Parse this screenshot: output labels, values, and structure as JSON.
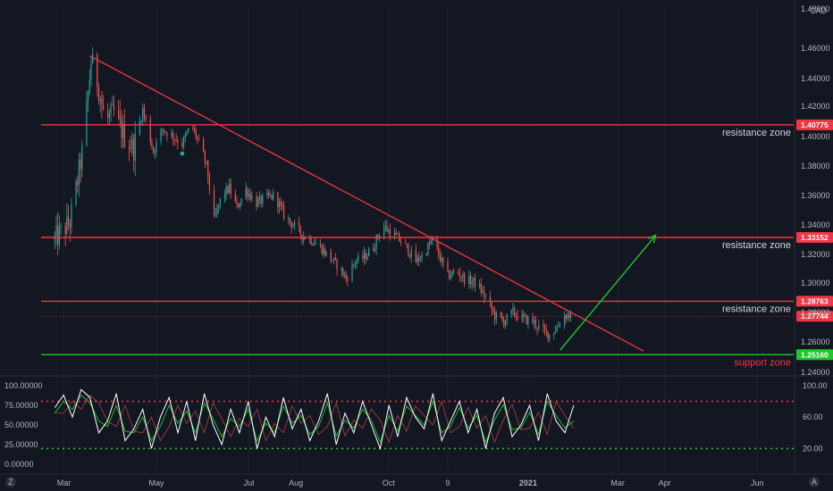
{
  "chart_data": [
    {
      "type": "candlestick",
      "currency": "CAD",
      "ylim": [
        1.24,
        1.48
      ],
      "y_ticks": [
        "1.48000",
        "1.46000",
        "1.44000",
        "1.42000",
        "1.40000",
        "1.38000",
        "1.36000",
        "1.34000",
        "1.32000",
        "1.30000",
        "1.28000",
        "1.26000",
        "1.24000"
      ],
      "x_ticks": [
        {
          "label": "Mar",
          "date": "2020-03-01"
        },
        {
          "label": "May",
          "date": "2020-05-01"
        },
        {
          "label": "Jul",
          "date": "2020-07-01"
        },
        {
          "label": "Aug",
          "date": "2020-08-01"
        },
        {
          "label": "Oct",
          "date": "2020-10-01"
        },
        {
          "label": "9",
          "date": "2020-11-09"
        },
        {
          "label": "2021",
          "date": "2021-01-01"
        },
        {
          "label": "Mar",
          "date": "2021-03-01"
        },
        {
          "label": "Apr",
          "date": "2021-04-01"
        },
        {
          "label": "Jun",
          "date": "2021-06-01"
        }
      ],
      "colors": {
        "up": "#26a69a",
        "down": "#ef5350",
        "resistance": "#f23645",
        "support": "#22c52e",
        "projection": "#22c52e",
        "trendline": "#f23645"
      },
      "price_path": [
        {
          "date": "2020-02-24",
          "close": 1.33
        },
        {
          "date": "2020-03-05",
          "close": 1.342
        },
        {
          "date": "2020-03-10",
          "close": 1.37
        },
        {
          "date": "2020-03-14",
          "close": 1.395
        },
        {
          "date": "2020-03-19",
          "close": 1.452
        },
        {
          "date": "2020-03-23",
          "close": 1.438
        },
        {
          "date": "2020-03-28",
          "close": 1.41
        },
        {
          "date": "2020-04-03",
          "close": 1.415
        },
        {
          "date": "2020-04-10",
          "close": 1.4
        },
        {
          "date": "2020-04-16",
          "close": 1.392
        },
        {
          "date": "2020-04-22",
          "close": 1.418
        },
        {
          "date": "2020-04-29",
          "close": 1.39
        },
        {
          "date": "2020-05-05",
          "close": 1.405
        },
        {
          "date": "2020-05-12",
          "close": 1.4
        },
        {
          "date": "2020-05-18",
          "close": 1.395
        },
        {
          "date": "2020-05-24",
          "close": 1.408
        },
        {
          "date": "2020-05-30",
          "close": 1.393
        },
        {
          "date": "2020-06-03",
          "close": 1.38
        },
        {
          "date": "2020-06-08",
          "close": 1.343
        },
        {
          "date": "2020-06-13",
          "close": 1.36
        },
        {
          "date": "2020-06-18",
          "close": 1.365
        },
        {
          "date": "2020-06-23",
          "close": 1.352
        },
        {
          "date": "2020-06-29",
          "close": 1.364
        },
        {
          "date": "2020-07-06",
          "close": 1.355
        },
        {
          "date": "2020-07-12",
          "close": 1.358
        },
        {
          "date": "2020-07-18",
          "close": 1.36
        },
        {
          "date": "2020-07-24",
          "close": 1.347
        },
        {
          "date": "2020-07-30",
          "close": 1.34
        },
        {
          "date": "2020-08-05",
          "close": 1.333
        },
        {
          "date": "2020-08-11",
          "close": 1.33
        },
        {
          "date": "2020-08-17",
          "close": 1.325
        },
        {
          "date": "2020-08-23",
          "close": 1.318
        },
        {
          "date": "2020-08-30",
          "close": 1.31
        },
        {
          "date": "2020-09-03",
          "close": 1.303
        },
        {
          "date": "2020-09-09",
          "close": 1.315
        },
        {
          "date": "2020-09-15",
          "close": 1.318
        },
        {
          "date": "2020-09-21",
          "close": 1.325
        },
        {
          "date": "2020-09-27",
          "close": 1.34
        },
        {
          "date": "2020-10-02",
          "close": 1.335
        },
        {
          "date": "2020-10-08",
          "close": 1.33
        },
        {
          "date": "2020-10-14",
          "close": 1.323
        },
        {
          "date": "2020-10-19",
          "close": 1.315
        },
        {
          "date": "2020-10-24",
          "close": 1.32
        },
        {
          "date": "2020-10-30",
          "close": 1.33
        },
        {
          "date": "2020-11-03",
          "close": 1.32
        },
        {
          "date": "2020-11-09",
          "close": 1.305
        },
        {
          "date": "2020-11-15",
          "close": 1.308
        },
        {
          "date": "2020-11-21",
          "close": 1.302
        },
        {
          "date": "2020-11-28",
          "close": 1.3
        },
        {
          "date": "2020-12-04",
          "close": 1.29
        },
        {
          "date": "2020-12-10",
          "close": 1.278
        },
        {
          "date": "2020-12-16",
          "close": 1.274
        },
        {
          "date": "2020-12-22",
          "close": 1.28
        },
        {
          "date": "2020-12-28",
          "close": 1.276
        },
        {
          "date": "2021-01-04",
          "close": 1.274
        },
        {
          "date": "2021-01-10",
          "close": 1.268
        },
        {
          "date": "2021-01-15",
          "close": 1.265
        },
        {
          "date": "2021-01-20",
          "close": 1.27
        },
        {
          "date": "2021-01-25",
          "close": 1.278
        },
        {
          "date": "2021-01-31",
          "close": 1.278
        }
      ],
      "pivot_marker": {
        "date": "2020-05-18",
        "price": 1.3885
      },
      "levels": [
        {
          "name": "resistance",
          "price": 1.40775,
          "label": "1.40775",
          "zone_text": "resistance zone",
          "color": "#f23645"
        },
        {
          "name": "resistance",
          "price": 1.33152,
          "label": "1.33152",
          "zone_text": "resistance zone",
          "color": "#f23645"
        },
        {
          "name": "resistance",
          "price": 1.28763,
          "label": "1.28763",
          "zone_text": "resistance zone",
          "color": "#f23645"
        },
        {
          "name": "support",
          "price": 1.2516,
          "label": "1.25160",
          "zone_text": "support zone",
          "color": "#22c52e"
        }
      ],
      "current_price": {
        "price": 1.27744,
        "label": "1.27744"
      },
      "trendline": {
        "start": {
          "date": "2020-03-18",
          "price": 1.455
        },
        "end": {
          "date": "2021-03-18",
          "price": 1.254
        }
      },
      "projection_arrow": {
        "start": {
          "date": "2021-01-22",
          "price": 1.2545
        },
        "end": {
          "date": "2021-03-26",
          "price": 1.333
        }
      }
    },
    {
      "type": "line",
      "name_visible": false,
      "ylim_left": [
        0,
        100
      ],
      "left_ticks": [
        "100.00000",
        "75.00000",
        "50.00000",
        "25.00000",
        "0.00000"
      ],
      "right_ticks": [
        {
          "label": "100.00",
          "value": 100
        },
        {
          "label": "60.00",
          "value": 60
        },
        {
          "label": "20.00",
          "value": 20
        }
      ],
      "overbought": 80,
      "oversold": 20,
      "series_colors": [
        "#ffffff",
        "#22c52e",
        "#ef5350"
      ],
      "series_a": [
        72,
        88,
        60,
        95,
        85,
        40,
        55,
        90,
        30,
        45,
        70,
        20,
        60,
        85,
        40,
        80,
        30,
        90,
        50,
        25,
        70,
        40,
        80,
        20,
        60,
        35,
        85,
        45,
        70,
        30,
        55,
        90,
        25,
        65,
        40,
        80,
        50,
        20,
        75,
        35,
        85,
        60,
        45,
        90,
        30,
        55,
        80,
        40,
        70,
        20,
        65,
        85,
        35,
        50,
        75,
        30,
        90,
        55,
        40,
        75
      ],
      "series_b": [
        65,
        80,
        70,
        88,
        78,
        55,
        48,
        75,
        42,
        40,
        60,
        30,
        48,
        75,
        52,
        68,
        40,
        78,
        58,
        35,
        58,
        48,
        70,
        30,
        52,
        40,
        74,
        52,
        62,
        38,
        48,
        78,
        36,
        56,
        46,
        70,
        56,
        28,
        62,
        42,
        74,
        62,
        50,
        80,
        40,
        48,
        72,
        46,
        62,
        28,
        56,
        76,
        44,
        46,
        66,
        38,
        80,
        62,
        46,
        55
      ]
    }
  ],
  "ui": {
    "left_badge": "Z",
    "right_badge": "A"
  }
}
